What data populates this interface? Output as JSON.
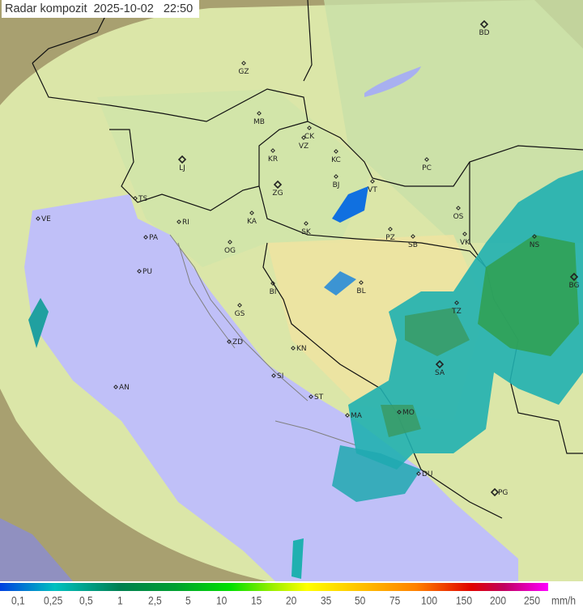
{
  "title": "Radar kompozit  2025-10-02   22:50",
  "legend": {
    "ticks": [
      "0,1",
      "0,25",
      "0,5",
      "1",
      "2,5",
      "5",
      "10",
      "15",
      "20",
      "35",
      "50",
      "75",
      "100",
      "150",
      "200",
      "250"
    ],
    "unit": "mm/h"
  },
  "colors": {
    "sea": "#c0c0f8",
    "land": "#dbe6a8",
    "outside": "#a8a070",
    "rain_light": "#0060f0",
    "rain_mid": "#20b0b0",
    "rain_heavy": "#30a050"
  },
  "stations": [
    {
      "code": "BD",
      "type": "radar"
    },
    {
      "code": "GZ"
    },
    {
      "code": "MB"
    },
    {
      "code": "CK"
    },
    {
      "code": "VZ"
    },
    {
      "code": "KR"
    },
    {
      "code": "KC"
    },
    {
      "code": "LJ",
      "type": "radar"
    },
    {
      "code": "ZG",
      "type": "radar"
    },
    {
      "code": "BJ"
    },
    {
      "code": "VT"
    },
    {
      "code": "PC"
    },
    {
      "code": "OS"
    },
    {
      "code": "KA"
    },
    {
      "code": "SK"
    },
    {
      "code": "PZ"
    },
    {
      "code": "SB"
    },
    {
      "code": "VK"
    },
    {
      "code": "NS"
    },
    {
      "code": "TS"
    },
    {
      "code": "RI"
    },
    {
      "code": "PA"
    },
    {
      "code": "OG"
    },
    {
      "code": "PU"
    },
    {
      "code": "VE"
    },
    {
      "code": "BI"
    },
    {
      "code": "BL"
    },
    {
      "code": "BG",
      "type": "radar"
    },
    {
      "code": "GS"
    },
    {
      "code": "TZ"
    },
    {
      "code": "ZD"
    },
    {
      "code": "KN"
    },
    {
      "code": "SA",
      "type": "radar"
    },
    {
      "code": "SI"
    },
    {
      "code": "ST"
    },
    {
      "code": "MO"
    },
    {
      "code": "MA"
    },
    {
      "code": "DU"
    },
    {
      "code": "PG",
      "type": "radar"
    },
    {
      "code": "AN"
    }
  ]
}
